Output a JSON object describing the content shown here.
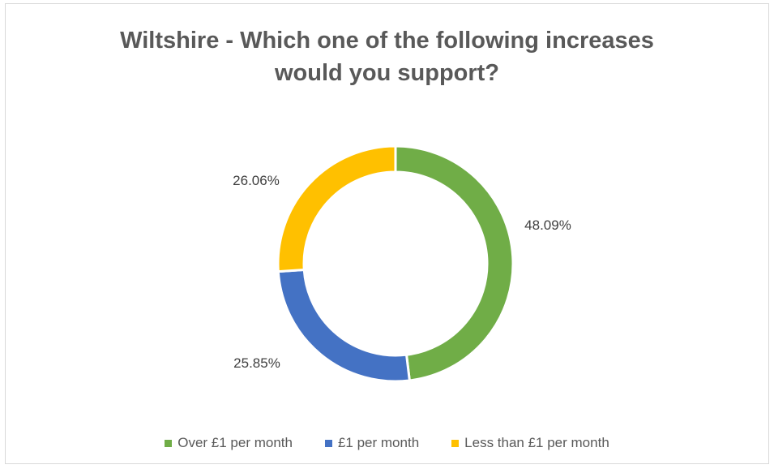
{
  "chart_data": {
    "type": "pie",
    "title": "Wiltshire - Which one of the following increases would you support?",
    "title_lines": [
      "Wiltshire - Which one of the following increases",
      "would you support?"
    ],
    "categories": [
      "Over £1 per month",
      "£1 per month",
      "Less than £1 per month"
    ],
    "values": [
      48.09,
      25.85,
      26.06
    ],
    "labels": [
      "48.09%",
      "25.85%",
      "26.06%"
    ],
    "colors": [
      "#70ad47",
      "#4472c4",
      "#ffc000"
    ],
    "donut": true,
    "legend_position": "bottom"
  }
}
